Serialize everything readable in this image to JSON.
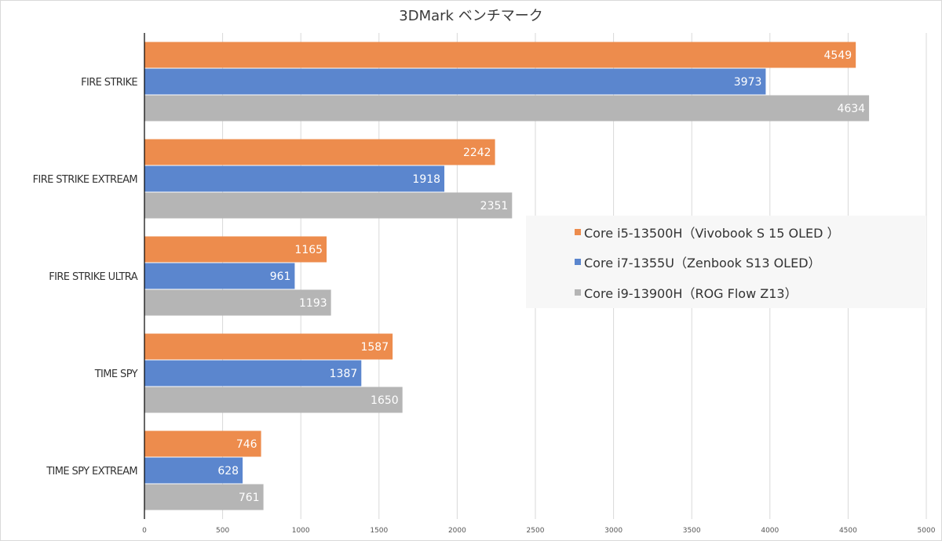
{
  "chart_data": {
    "type": "bar",
    "orientation": "horizontal",
    "title": "3DMark ベンチマーク",
    "categories": [
      "FIRE STRIKE",
      "FIRE STRIKE EXTREAM",
      "FIRE STRIKE ULTRA",
      "TIME SPY",
      "TIME SPY EXTREAM"
    ],
    "series": [
      {
        "name": "Core i5-13500H（Vivobook S 15 OLED ）",
        "color": "#ed8c4d",
        "values": [
          4549,
          2242,
          1165,
          1587,
          746
        ]
      },
      {
        "name": "Core i7-1355U（Zenbook S13 OLED）",
        "color": "#5b86ce",
        "values": [
          3973,
          1918,
          961,
          1387,
          628
        ]
      },
      {
        "name": "Core i9-13900H（ROG Flow Z13）",
        "color": "#b5b5b5",
        "values": [
          4634,
          2351,
          1193,
          1650,
          761
        ]
      }
    ],
    "xlim": [
      0,
      5000
    ],
    "xticks": [
      "0",
      "500",
      "1000",
      "1500",
      "2000",
      "2500",
      "3000",
      "3500",
      "4000",
      "4500",
      "5000"
    ],
    "grid": true,
    "legend_position": "right"
  }
}
